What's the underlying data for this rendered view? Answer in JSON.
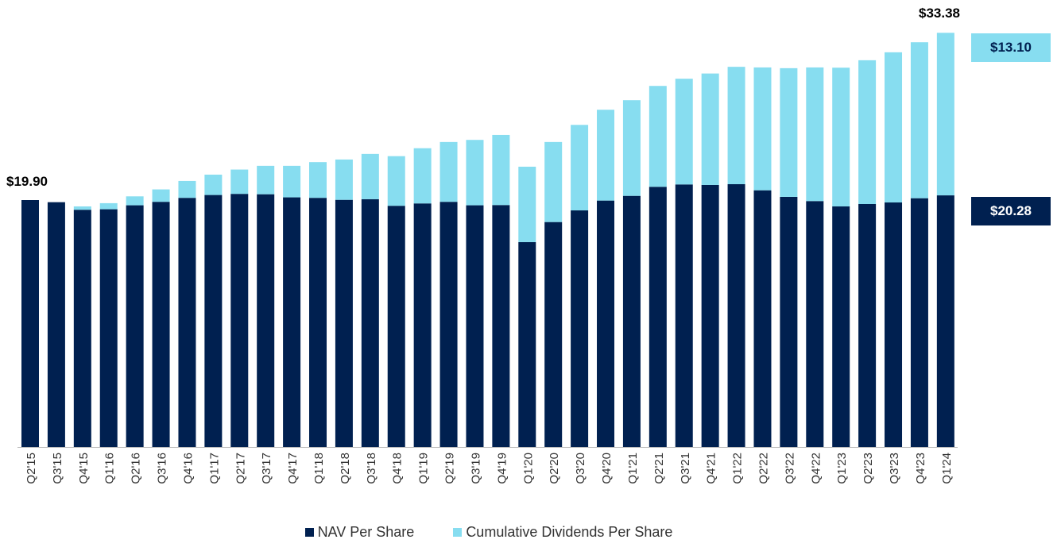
{
  "chart_data": {
    "type": "bar",
    "stacked": true,
    "categories": [
      "Q2'15",
      "Q3'15",
      "Q4'15",
      "Q1'16",
      "Q2'16",
      "Q3'16",
      "Q4'16",
      "Q1'17",
      "Q2'17",
      "Q3'17",
      "Q4'17",
      "Q1'18",
      "Q2'18",
      "Q3'18",
      "Q4'18",
      "Q1'19",
      "Q2'19",
      "Q3'19",
      "Q4'19",
      "Q1'20",
      "Q2'20",
      "Q3'20",
      "Q4'20",
      "Q1'21",
      "Q2'21",
      "Q3'21",
      "Q4'21",
      "Q1'22",
      "Q2'22",
      "Q3'22",
      "Q4'22",
      "Q1'23",
      "Q2'23",
      "Q3'23",
      "Q4'23",
      "Q1'24"
    ],
    "series": [
      {
        "name": "NAV Per Share",
        "color": "#002050",
        "values": [
          19.9,
          19.73,
          19.12,
          19.16,
          19.48,
          19.76,
          20.08,
          20.31,
          20.4,
          20.37,
          20.12,
          20.08,
          19.92,
          19.97,
          19.44,
          19.63,
          19.76,
          19.48,
          19.5,
          16.51,
          18.13,
          19.07,
          19.86,
          20.24,
          20.97,
          21.16,
          21.12,
          21.18,
          20.69,
          20.16,
          19.82,
          19.39,
          19.58,
          19.71,
          20.05,
          20.28
        ]
      },
      {
        "name": "Cumulative Dividends Per Share",
        "color": "#87DDF0",
        "values": [
          0,
          0,
          0.27,
          0.49,
          0.72,
          1.0,
          1.36,
          1.64,
          1.96,
          2.29,
          2.54,
          2.88,
          3.25,
          3.65,
          4.0,
          4.45,
          4.82,
          5.27,
          5.65,
          6.08,
          6.45,
          6.89,
          7.32,
          7.71,
          8.13,
          8.52,
          8.98,
          9.46,
          9.9,
          10.37,
          10.77,
          11.18,
          11.59,
          12.1,
          12.57,
          13.1
        ]
      }
    ],
    "ylim": [
      0,
      34
    ],
    "grid": false,
    "legend": "bottom",
    "annotations": {
      "first_nav": "$19.90",
      "last_total": "$33.38",
      "last_dividends": "$13.10",
      "last_nav": "$20.28"
    }
  }
}
